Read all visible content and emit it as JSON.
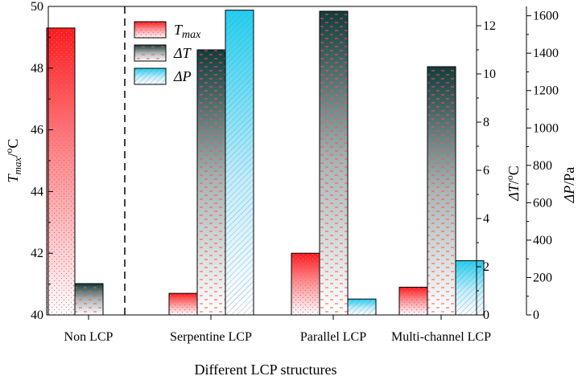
{
  "chart_data": {
    "type": "bar",
    "title": "",
    "xlabel": "Different LCP structures",
    "categories": [
      "Non LCP",
      "Serpentine LCP",
      "Parallel LCP",
      "Multi-channel LCP"
    ],
    "series": [
      {
        "name": "T_max",
        "legend_main": "T",
        "legend_sub": "max",
        "axis": "left",
        "unit": "°C",
        "values": [
          49.3,
          40.7,
          42.0,
          40.9
        ],
        "color": "#ff1a1a"
      },
      {
        "name": "ΔT",
        "legend_main": "ΔT",
        "legend_sub": "",
        "axis": "right1",
        "unit": "°C",
        "values": [
          1.3,
          11.0,
          12.6,
          10.3
        ],
        "color": "#1f4d4d"
      },
      {
        "name": "ΔP",
        "legend_main": "ΔP",
        "legend_sub": "",
        "axis": "right2",
        "unit": "Pa",
        "values": [
          null,
          1630,
          85,
          290
        ],
        "color": "#29c8e8"
      }
    ],
    "axes": {
      "left": {
        "main": "T",
        "sub": "max",
        "sup": "o",
        "tail": "C",
        "min": 40,
        "max": 50,
        "ticks": [
          "40",
          "42",
          "44",
          "46",
          "48",
          "50"
        ]
      },
      "right1": {
        "main": "ΔT",
        "sup": "o",
        "tail": "C",
        "min": 0,
        "max": 12.8,
        "ticks": [
          "0",
          "2",
          "4",
          "6",
          "8",
          "10",
          "12"
        ]
      },
      "right2": {
        "main": "ΔP",
        "tail": "Pa",
        "min": 0,
        "max": 1650,
        "ticks": [
          "0",
          "200",
          "400",
          "600",
          "800",
          "1000",
          "1200",
          "1400",
          "1600"
        ]
      }
    },
    "divider_after_category": 0,
    "legend_position": "top-left-inside"
  }
}
